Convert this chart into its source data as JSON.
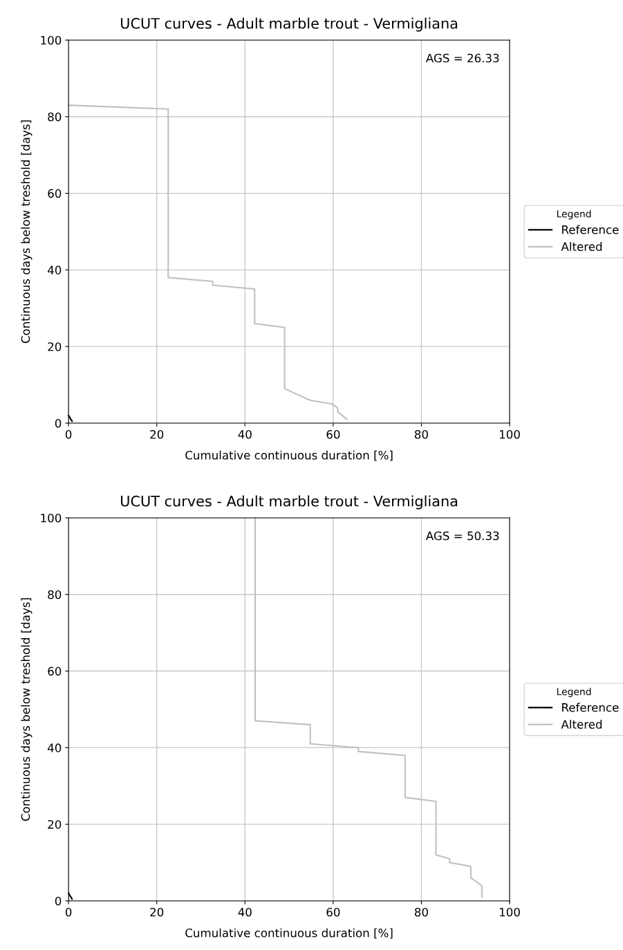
{
  "chart_data": [
    {
      "type": "line",
      "title": "UCUT curves - Adult marble trout - Vermigliana",
      "xlabel": "Cumulative continuous duration [%]",
      "ylabel": "Continuous days below treshold [days]",
      "legend_title": "Legend",
      "annotations": [
        "AGS = 26.33"
      ],
      "series": [
        {
          "name": "Reference",
          "color": "#000000",
          "x": [
            0,
            0.8
          ],
          "values": [
            2,
            0.5
          ]
        },
        {
          "name": "Altered",
          "color": "#c0c0c0",
          "x": [
            0,
            22.6,
            22.6,
            32.7,
            32.7,
            42.2,
            42.2,
            49.0,
            49.0,
            54.7,
            59.7,
            61.0,
            61.0,
            63.1
          ],
          "values": [
            83,
            82,
            38,
            37,
            36,
            35,
            26,
            25,
            9,
            6,
            5,
            4,
            3,
            1
          ]
        }
      ],
      "xlim": [
        0,
        100
      ],
      "ylim": [
        0,
        100
      ],
      "xticks": [
        0,
        20,
        40,
        60,
        80,
        100
      ],
      "yticks": [
        0,
        20,
        40,
        60,
        80,
        100
      ],
      "grid": true,
      "legend": "right",
      "line_style": "solid"
    },
    {
      "type": "line",
      "title": "UCUT curves - Adult marble trout - Vermigliana",
      "xlabel": "Cumulative continuous duration [%]",
      "ylabel": "Continuous days below treshold [days]",
      "legend_title": "Legend",
      "annotations": [
        "AGS = 50.33"
      ],
      "series": [
        {
          "name": "Reference",
          "color": "#000000",
          "x": [
            0,
            0.8
          ],
          "values": [
            2,
            0.5
          ]
        },
        {
          "name": "Altered",
          "color": "#c0c0c0",
          "x": [
            42.3,
            42.3,
            54.8,
            54.8,
            65.7,
            65.7,
            76.3,
            76.3,
            83.3,
            83.3,
            86.4,
            86.4,
            91.2,
            91.2,
            93.7,
            93.7
          ],
          "values": [
            100,
            47,
            46,
            41,
            40,
            39,
            38,
            27,
            26,
            12,
            11,
            10,
            9,
            6,
            4,
            1
          ]
        }
      ],
      "xlim": [
        0,
        100
      ],
      "ylim": [
        0,
        100
      ],
      "xticks": [
        0,
        20,
        40,
        60,
        80,
        100
      ],
      "yticks": [
        0,
        20,
        40,
        60,
        80,
        100
      ],
      "grid": true,
      "legend": "right",
      "line_style": "solid"
    }
  ]
}
